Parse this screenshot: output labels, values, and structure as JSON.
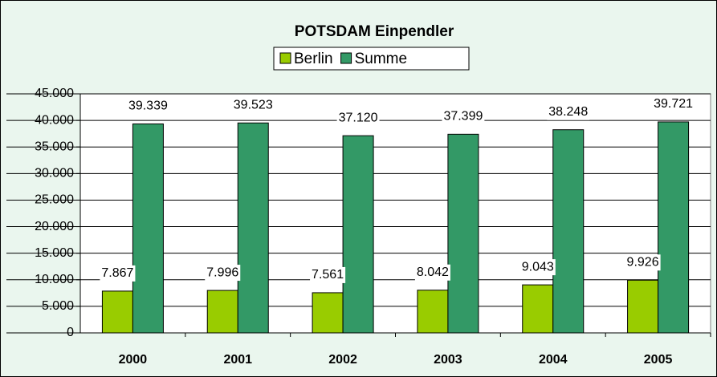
{
  "chart_data": {
    "type": "bar",
    "title": "POTSDAM Einpendler",
    "categories": [
      "2000",
      "2001",
      "2002",
      "2003",
      "2004",
      "2005"
    ],
    "series": [
      {
        "name": "Berlin",
        "color": "#99cc00",
        "values": [
          7867,
          7996,
          7561,
          8042,
          9043,
          9926
        ],
        "value_labels": [
          "7.867",
          "7.996",
          "7.561",
          "8.042",
          "9.043",
          "9.926"
        ]
      },
      {
        "name": "Summe",
        "color": "#339966",
        "values": [
          39339,
          39523,
          37120,
          37399,
          38248,
          39721
        ],
        "value_labels": [
          "39.339",
          "39.523",
          "37.120",
          "37.399",
          "38.248",
          "39.721"
        ]
      }
    ],
    "ylim": [
      0,
      45000
    ],
    "yticks": [
      {
        "value": 0,
        "label": "0"
      },
      {
        "value": 5000,
        "label": "5.000"
      },
      {
        "value": 10000,
        "label": "10.000"
      },
      {
        "value": 15000,
        "label": "15.000"
      },
      {
        "value": 20000,
        "label": "20.000"
      },
      {
        "value": 25000,
        "label": "25.000"
      },
      {
        "value": 30000,
        "label": "30.000"
      },
      {
        "value": 35000,
        "label": "35.000"
      },
      {
        "value": 40000,
        "label": "40.000"
      },
      {
        "value": 45000,
        "label": "45.000"
      }
    ],
    "grid": true,
    "legend": "top"
  }
}
